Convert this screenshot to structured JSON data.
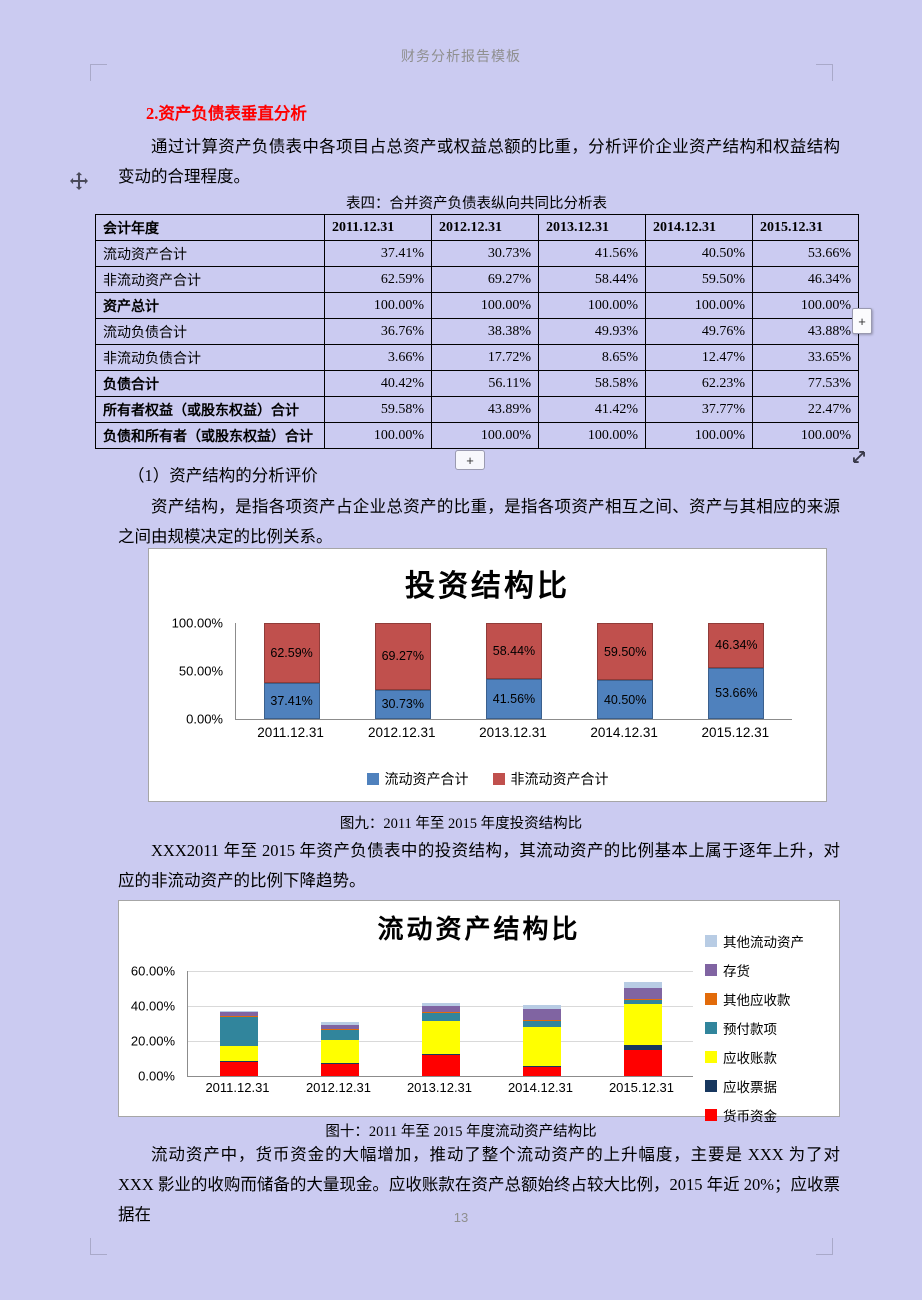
{
  "page": {
    "header_title": "财务分析报告模板",
    "page_number": "13"
  },
  "content": {
    "heading": "2.资产负债表垂直分析",
    "para1": "通过计算资产负债表中各项目占总资产或权益总额的比重，分析评价企业资产结构和权益结构变动的合理程度。",
    "sub1": "（1）资产结构的分析评价",
    "para2": "资产结构，是指各项资产占企业总资产的比重，是指各项资产相互之间、资产与其相应的来源之间由规模决定的比例关系。",
    "caption9": "图九：2011 年至 2015 年度投资结构比",
    "para3": "XXX2011 年至 2015 年资产负债表中的投资结构，其流动资产的比例基本上属于逐年上升，对应的非流动资产的比例下降趋势。",
    "caption10": "图十：2011 年至 2015 年度流动资产结构比",
    "para4": "流动资产中，货币资金的大幅增加，推动了整个流动资产的上升幅度，主要是 XXX 为了对 XXX 影业的收购而储备的大量现金。应收账款在资产总额始终占较大比例，2015 年近 20%；应收票据在"
  },
  "table": {
    "title": "表四：合并资产负债表纵向共同比分析表",
    "header": [
      "会计年度",
      "2011.12.31",
      "2012.12.31",
      "2013.12.31",
      "2014.12.31",
      "2015.12.31"
    ],
    "rows": [
      {
        "label": "流动资产合计",
        "bold": false,
        "values": [
          "37.41%",
          "30.73%",
          "41.56%",
          "40.50%",
          "53.66%"
        ]
      },
      {
        "label": "非流动资产合计",
        "bold": false,
        "values": [
          "62.59%",
          "69.27%",
          "58.44%",
          "59.50%",
          "46.34%"
        ]
      },
      {
        "label": "资产总计",
        "bold": true,
        "values": [
          "100.00%",
          "100.00%",
          "100.00%",
          "100.00%",
          "100.00%"
        ]
      },
      {
        "label": "流动负债合计",
        "bold": false,
        "values": [
          "36.76%",
          "38.38%",
          "49.93%",
          "49.76%",
          "43.88%"
        ]
      },
      {
        "label": "非流动负债合计",
        "bold": false,
        "values": [
          "3.66%",
          "17.72%",
          "8.65%",
          "12.47%",
          "33.65%"
        ]
      },
      {
        "label": "负债合计",
        "bold": true,
        "values": [
          "40.42%",
          "56.11%",
          "58.58%",
          "62.23%",
          "77.53%"
        ]
      },
      {
        "label": "所有者权益（或股东权益）合计",
        "bold": true,
        "values": [
          "59.58%",
          "43.89%",
          "41.42%",
          "37.77%",
          "22.47%"
        ]
      },
      {
        "label": "负债和所有者（或股东权益）合计",
        "bold": true,
        "values": [
          "100.00%",
          "100.00%",
          "100.00%",
          "100.00%",
          "100.00%"
        ]
      }
    ]
  },
  "chart_data": [
    {
      "type": "bar",
      "stacked": true,
      "title": "投资结构比",
      "categories": [
        "2011.12.31",
        "2012.12.31",
        "2013.12.31",
        "2014.12.31",
        "2015.12.31"
      ],
      "series": [
        {
          "name": "流动资产合计",
          "color": "#4f81bd",
          "values": [
            37.41,
            30.73,
            41.56,
            40.5,
            53.66
          ],
          "labels": [
            "37.41%",
            "30.73%",
            "41.56%",
            "40.50%",
            "53.66%"
          ]
        },
        {
          "name": "非流动资产合计",
          "color": "#c0504d",
          "values": [
            62.59,
            69.27,
            58.44,
            59.5,
            46.34
          ],
          "labels": [
            "62.59%",
            "69.27%",
            "58.44%",
            "59.50%",
            "46.34%"
          ]
        }
      ],
      "ylim": [
        0,
        100
      ],
      "yticks": [
        "100.00%",
        "50.00%",
        "0.00%"
      ],
      "grid": false,
      "legend_position": "bottom"
    },
    {
      "type": "bar",
      "stacked": true,
      "title": "流动资产结构比",
      "categories": [
        "2011.12.31",
        "2012.12.31",
        "2013.12.31",
        "2014.12.31",
        "2015.12.31"
      ],
      "estimated": true,
      "series": [
        {
          "name": "货币资金",
          "color": "#ff0000",
          "values": [
            8.0,
            7.0,
            12.0,
            5.0,
            15.0
          ]
        },
        {
          "name": "应收票据",
          "color": "#17375e",
          "values": [
            0.5,
            0.3,
            0.5,
            0.5,
            2.5
          ]
        },
        {
          "name": "应收账款",
          "color": "#ffff00",
          "values": [
            8.5,
            13.5,
            19.0,
            22.5,
            23.5
          ]
        },
        {
          "name": "预付款项",
          "color": "#31859c",
          "values": [
            17.0,
            5.5,
            4.5,
            3.5,
            2.5
          ]
        },
        {
          "name": "其他应收款",
          "color": "#e26b0a",
          "values": [
            0.5,
            0.5,
            0.5,
            0.5,
            0.5
          ]
        },
        {
          "name": "存货",
          "color": "#8064a2",
          "values": [
            2.0,
            2.5,
            3.5,
            6.5,
            6.5
          ]
        },
        {
          "name": "其他流动资产",
          "color": "#b8cce4",
          "values": [
            0.91,
            1.43,
            1.56,
            2.0,
            3.16
          ]
        }
      ],
      "totals": [
        37.41,
        30.73,
        41.56,
        40.5,
        53.66
      ],
      "ylim": [
        0,
        60
      ],
      "yticks": [
        "60.00%",
        "40.00%",
        "20.00%",
        "0.00%"
      ],
      "grid": true,
      "legend_position": "right"
    }
  ],
  "widgets": {
    "plus": "+"
  }
}
